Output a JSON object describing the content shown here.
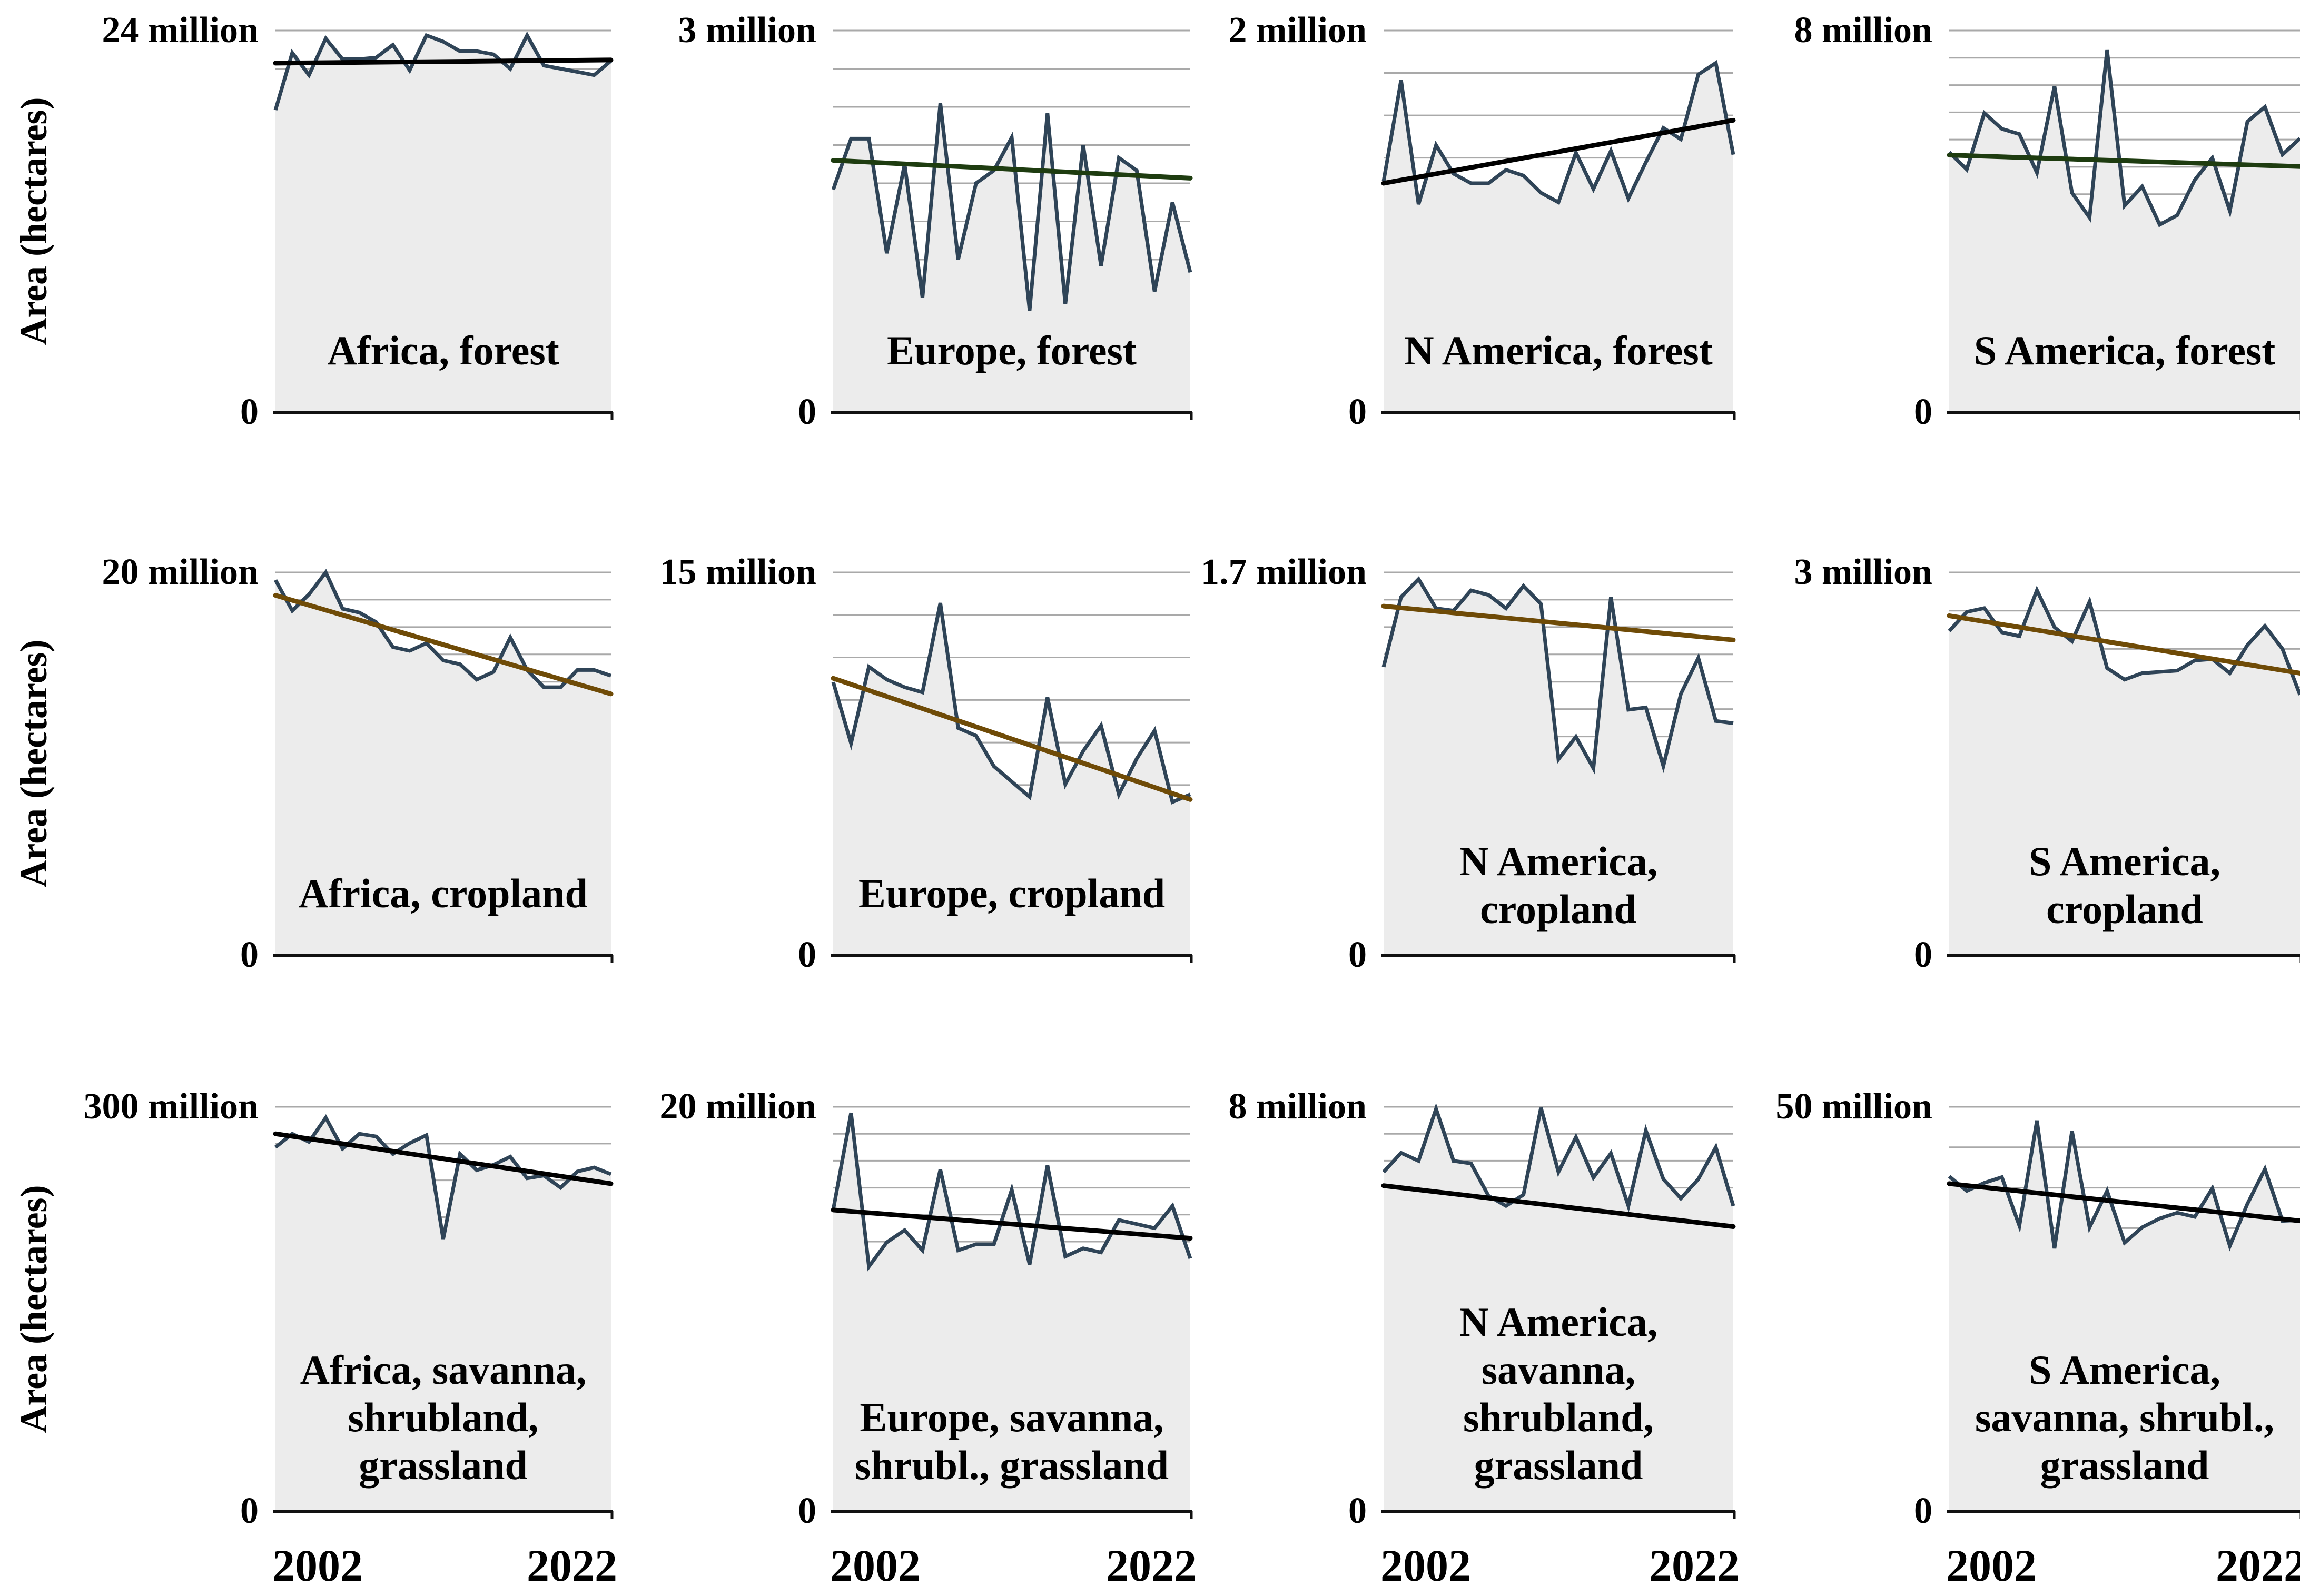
{
  "figure": {
    "ylabel": "Area (hectares)",
    "x_axis": {
      "start_label": "2002",
      "end_label": "2022"
    },
    "x_range": {
      "start_year": 2002,
      "end_year": 2022
    }
  },
  "colors": {
    "data_line": "#2f4457",
    "area_fill": "#ececec",
    "gridline": "#a9a9a9",
    "axis": "#111111",
    "trend_black": "#000000",
    "trend_green": "#1e3c10",
    "trend_brown": "#6f4b07"
  },
  "chart_data": [
    {
      "type": "area",
      "region": "Africa",
      "land_cover": "forest",
      "title_text": "Africa, forest",
      "max_label": "24 million",
      "zero_label": "0",
      "ymax": 24,
      "grid_intervals": 10,
      "values": [
        19.0,
        22.6,
        21.2,
        23.5,
        22.2,
        22.2,
        22.3,
        23.1,
        21.5,
        23.7,
        23.3,
        22.7,
        22.7,
        22.5,
        21.6,
        23.7,
        21.8,
        21.6,
        21.4,
        21.2,
        22.1
      ],
      "trend": {
        "color": "black",
        "start": 21.95,
        "end": 22.15
      }
    },
    {
      "type": "area",
      "region": "Europe",
      "land_cover": "forest",
      "title_text": "Europe, forest",
      "max_label": "3 million",
      "zero_label": "0",
      "ymax": 3,
      "grid_intervals": 10,
      "values": [
        1.75,
        2.15,
        2.15,
        1.25,
        1.95,
        0.9,
        2.43,
        1.2,
        1.8,
        1.9,
        2.16,
        0.8,
        2.35,
        0.85,
        2.1,
        1.15,
        2.0,
        1.9,
        0.95,
        1.65,
        1.1
      ],
      "trend": {
        "color": "green",
        "start": 1.98,
        "end": 1.84
      }
    },
    {
      "type": "area",
      "region": "N America",
      "land_cover": "forest",
      "title_text": "N America, forest",
      "max_label": "2 million",
      "zero_label": "0",
      "ymax": 2,
      "grid_intervals": 9,
      "values": [
        1.21,
        1.74,
        1.09,
        1.4,
        1.25,
        1.2,
        1.2,
        1.27,
        1.24,
        1.15,
        1.1,
        1.36,
        1.17,
        1.37,
        1.12,
        1.31,
        1.49,
        1.43,
        1.77,
        1.83,
        1.35
      ],
      "trend": {
        "color": "black",
        "start": 1.2,
        "end": 1.53
      }
    },
    {
      "type": "area",
      "region": "S America",
      "land_cover": "forest",
      "title_text": "S America, forest",
      "max_label": "8 million",
      "zero_label": "0",
      "ymax": 8,
      "grid_intervals": 14,
      "values": [
        5.45,
        5.09,
        6.27,
        5.94,
        5.83,
        5.02,
        6.83,
        4.6,
        4.08,
        7.59,
        4.33,
        4.73,
        3.93,
        4.13,
        4.87,
        5.33,
        4.22,
        6.09,
        6.4,
        5.4,
        5.74
      ],
      "trend": {
        "color": "green",
        "start": 5.39,
        "end": 5.15
      }
    },
    {
      "type": "area",
      "region": "Africa",
      "land_cover": "cropland",
      "title_text": "Africa, cropland",
      "max_label": "20 million",
      "zero_label": "0",
      "ymax": 20,
      "grid_intervals": 14,
      "values": [
        19.6,
        18.0,
        18.85,
        20.0,
        18.1,
        17.9,
        17.4,
        16.1,
        15.9,
        16.3,
        15.4,
        15.2,
        14.4,
        14.8,
        16.6,
        14.9,
        14.0,
        14.0,
        14.9,
        14.9,
        14.6
      ],
      "trend": {
        "color": "brown",
        "start": 18.8,
        "end": 13.65
      }
    },
    {
      "type": "area",
      "region": "Europe",
      "land_cover": "cropland",
      "title_text": "Europe, cropland",
      "max_label": "15 million",
      "zero_label": "0",
      "ymax": 15,
      "grid_intervals": 9,
      "values": [
        10.7,
        8.3,
        11.3,
        10.8,
        10.5,
        10.3,
        13.8,
        8.9,
        8.6,
        7.4,
        6.8,
        6.2,
        10.1,
        6.7,
        8.0,
        9.0,
        6.3,
        7.7,
        8.8,
        6.0,
        6.3
      ],
      "trend": {
        "color": "brown",
        "start": 10.85,
        "end": 6.1
      }
    },
    {
      "type": "area",
      "region": "N America",
      "land_cover": "cropland",
      "title_text": "N America,\ncropland",
      "max_label": "1.7 million",
      "zero_label": "0",
      "ymax": 1.7,
      "grid_intervals": 14,
      "values": [
        1.28,
        1.59,
        1.67,
        1.54,
        1.53,
        1.62,
        1.6,
        1.54,
        1.64,
        1.56,
        0.87,
        0.97,
        0.83,
        1.59,
        1.09,
        1.1,
        0.84,
        1.16,
        1.32,
        1.04,
        1.03
      ],
      "trend": {
        "color": "brown",
        "start": 1.55,
        "end": 1.4
      }
    },
    {
      "type": "area",
      "region": "S America",
      "land_cover": "cropland",
      "title_text": "S America,\ncropland",
      "max_label": "3 million",
      "zero_label": "0",
      "ymax": 3,
      "grid_intervals": 10,
      "values": [
        2.54,
        2.69,
        2.72,
        2.53,
        2.5,
        2.86,
        2.57,
        2.46,
        2.77,
        2.25,
        2.16,
        2.21,
        2.22,
        2.23,
        2.31,
        2.32,
        2.21,
        2.43,
        2.58,
        2.4,
        2.04
      ],
      "trend": {
        "color": "brown",
        "start": 2.66,
        "end": 2.21
      }
    },
    {
      "type": "area",
      "region": "Africa",
      "land_cover": "savanna, shrubland, grassland",
      "title_text": "Africa, savanna,\nshrubland,\ngrassland",
      "max_label": "300 million",
      "zero_label": "0",
      "ymax": 300,
      "grid_intervals": 11,
      "values": [
        270,
        280,
        274,
        292,
        269,
        280,
        278,
        265,
        273,
        279,
        202,
        265,
        253,
        257,
        263,
        247,
        249,
        240,
        252,
        255,
        250
      ],
      "trend": {
        "color": "black",
        "start": 280,
        "end": 243
      }
    },
    {
      "type": "area",
      "region": "Europe",
      "land_cover": "savanna, shrubl., grassland",
      "title_text": "Europe, savanna,\nshrubl., grassland",
      "max_label": "20 million",
      "zero_label": "0",
      "ymax": 20,
      "grid_intervals": 15,
      "values": [
        14.9,
        19.7,
        12.1,
        13.3,
        13.9,
        12.9,
        16.9,
        12.9,
        13.2,
        13.2,
        15.9,
        12.2,
        17.1,
        12.6,
        13.0,
        12.8,
        14.4,
        14.2,
        14.0,
        15.1,
        12.5
      ],
      "trend": {
        "color": "black",
        "start": 14.9,
        "end": 13.5
      }
    },
    {
      "type": "area",
      "region": "N America",
      "land_cover": "savanna, shrubland, grassland",
      "title_text": "N America,\nsavanna,\nshrubland,\ngrassland",
      "max_label": "8 million",
      "zero_label": "0",
      "ymax": 8,
      "grid_intervals": 15,
      "values": [
        6.71,
        7.09,
        6.93,
        7.96,
        6.93,
        6.88,
        6.24,
        6.04,
        6.26,
        7.98,
        6.71,
        7.4,
        6.6,
        7.08,
        6.04,
        7.53,
        6.57,
        6.19,
        6.57,
        7.2,
        6.04
      ],
      "trend": {
        "color": "black",
        "start": 6.44,
        "end": 5.63
      }
    },
    {
      "type": "area",
      "region": "S America",
      "land_cover": "savanna, shrubl., grassland",
      "title_text": "S America,\nsavanna, shrubl.,\ngrassland",
      "max_label": "50 million",
      "zero_label": "0",
      "ymax": 50,
      "grid_intervals": 10,
      "values": [
        41.4,
        39.6,
        40.6,
        41.3,
        35.3,
        48.3,
        32.5,
        47.0,
        35.1,
        39.6,
        33.2,
        35.1,
        36.2,
        36.9,
        36.4,
        39.9,
        32.8,
        38.0,
        42.3,
        35.9,
        36.0
      ],
      "trend": {
        "color": "black",
        "start": 40.5,
        "end": 35.9
      }
    }
  ]
}
